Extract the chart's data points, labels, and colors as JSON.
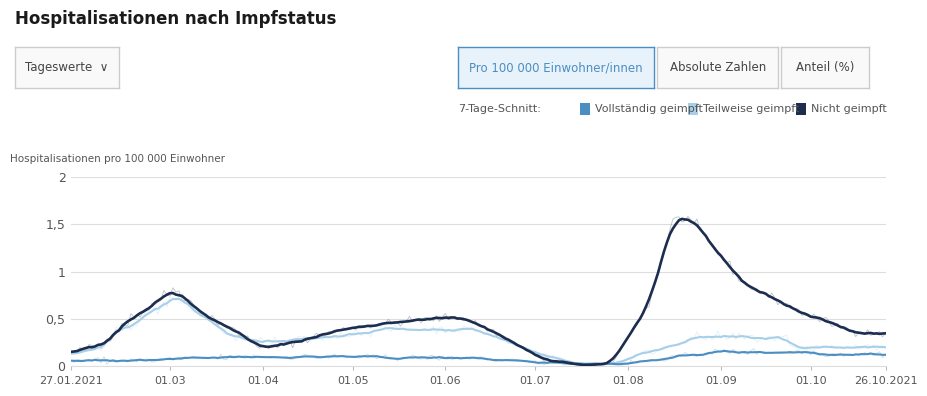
{
  "title": "Hospitalisationen nach Impfstatus",
  "ylabel": "Hospitalisationen pro 100 000 Einwohner",
  "button_active": "Pro 100 000 Einwohner/innen",
  "button_inactive1": "Absolute Zahlen",
  "button_inactive2": "Anteil (%)",
  "dropdown_label": "Tageswerte  ∨",
  "legend_label": "7-Tage-Schnitt:",
  "legend_vollstaendig": "Vollständig geimpft",
  "legend_teilweise": "Teilweise geimpft",
  "legend_nicht": "Nicht geimpft",
  "color_vollstaendig": "#4a8ec2",
  "color_teilweise": "#a8cfe8",
  "color_nicht": "#1c2d4f",
  "color_active_btn_bg": "#e8f2fb",
  "color_active_btn_border": "#4a8ec2",
  "color_active_btn_text": "#4a8ec2",
  "ylim": [
    0,
    2.0
  ],
  "yticks": [
    0,
    0.5,
    1.0,
    1.5,
    2.0
  ],
  "ytick_labels": [
    "0",
    "0,5",
    "1",
    "1,5",
    "2"
  ],
  "x_tick_labels": [
    "27.01.2021",
    "01.03",
    "01.04",
    "01.05",
    "01.06",
    "01.07",
    "01.08",
    "01.09",
    "01.10",
    "26.10.2021"
  ],
  "x_tick_positions": [
    0,
    33,
    64,
    94,
    125,
    155,
    186,
    217,
    247,
    272
  ],
  "bg_color": "#ffffff",
  "grid_color": "#dddddd",
  "n_days": 273
}
